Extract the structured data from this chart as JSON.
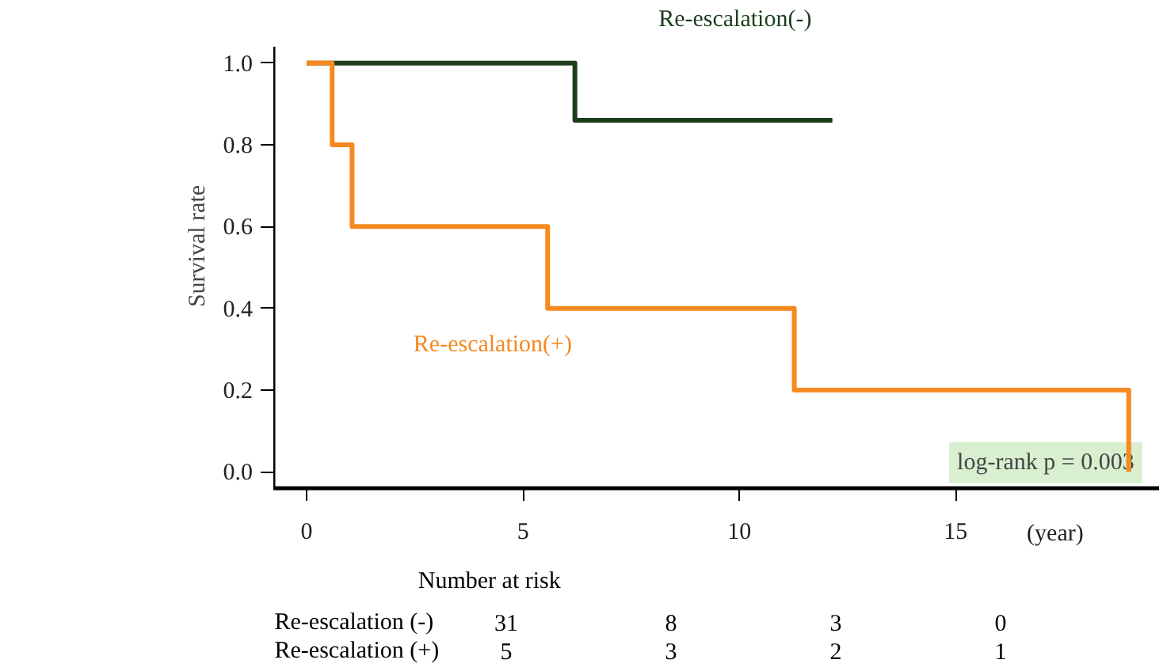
{
  "chart_data": {
    "type": "step",
    "ylabel": "Survival rate",
    "xlabel": "(year)",
    "series": [
      {
        "name": "Re-escalation(-)",
        "color": "#1b3d1b",
        "x": [
          0,
          6.2,
          12.15
        ],
        "values": [
          1.0,
          0.86,
          0.86
        ]
      },
      {
        "name": "Re-escalation(+)",
        "color": "#f5891f",
        "x": [
          0,
          0.59,
          1.05,
          5.57,
          11.27,
          19.0
        ],
        "values": [
          1.0,
          0.8,
          0.6,
          0.4,
          0.2,
          0.0
        ]
      }
    ],
    "xlim": [
      -0.77,
      19.7
    ],
    "ylim": [
      -0.04,
      1.04
    ],
    "xticks": [
      0,
      5,
      10,
      15
    ],
    "yticks": [
      {
        "value": 0,
        "label": "0.0"
      },
      {
        "value": 0.2,
        "label": "0.2"
      },
      {
        "value": 0.4,
        "label": "0.4"
      },
      {
        "value": 0.6,
        "label": "0.6"
      },
      {
        "value": 0.8,
        "label": "0.8"
      },
      {
        "value": 1,
        "label": "1.0"
      }
    ],
    "grid": false,
    "marker": "none",
    "line_style": "solid",
    "annotations": [
      "log-rank p = 0.003",
      "Number at risk",
      "Re-escalation (-)",
      "31",
      "8",
      "3",
      "0",
      "Re-escalation (+)",
      "5",
      "3",
      "2",
      "1"
    ]
  }
}
